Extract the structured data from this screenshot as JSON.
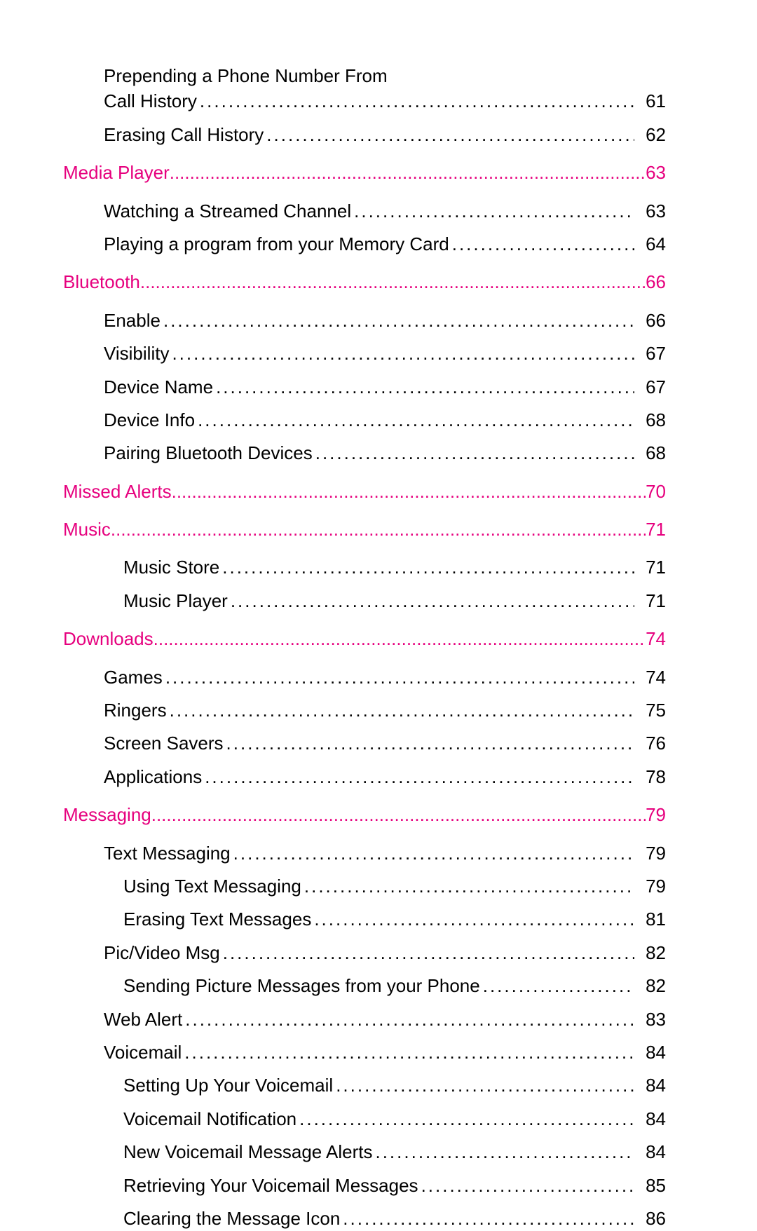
{
  "colors": {
    "section": "#e6007e",
    "text": "#000000",
    "background": "#ffffff"
  },
  "fontsize": 26,
  "entries": [
    {
      "type": "subitem",
      "level": 1,
      "title_line1": "Prepending a Phone Number From",
      "title_line2": "Call History",
      "page": "61"
    },
    {
      "type": "subitem",
      "level": 1,
      "title": "Erasing Call History",
      "page": "62"
    },
    {
      "type": "section",
      "level": 0,
      "title": "Media Player",
      "page": "63"
    },
    {
      "type": "subitem",
      "level": 1,
      "title": "Watching a Streamed Channel",
      "page": "63"
    },
    {
      "type": "subitem",
      "level": 1,
      "title": "Playing a program from your Memory Card",
      "page": "64"
    },
    {
      "type": "section",
      "level": 0,
      "title": "Bluetooth",
      "page": "66"
    },
    {
      "type": "subitem",
      "level": 1,
      "title": "Enable",
      "page": "66"
    },
    {
      "type": "subitem",
      "level": 1,
      "title": "Visibility",
      "page": "67"
    },
    {
      "type": "subitem",
      "level": 1,
      "title": "Device Name",
      "page": "67"
    },
    {
      "type": "subitem",
      "level": 1,
      "title": "Device Info",
      "page": "68"
    },
    {
      "type": "subitem",
      "level": 1,
      "title": "Pairing Bluetooth Devices",
      "page": "68"
    },
    {
      "type": "section",
      "level": 0,
      "title": "Missed Alerts",
      "page": "70"
    },
    {
      "type": "section",
      "level": 0,
      "title": "Music",
      "page": "71"
    },
    {
      "type": "subitem",
      "level": 2,
      "title": "Music Store",
      "page": "71"
    },
    {
      "type": "subitem",
      "level": 2,
      "title": "Music Player",
      "page": "71"
    },
    {
      "type": "section",
      "level": 0,
      "title": "Downloads",
      "page": "74"
    },
    {
      "type": "subitem",
      "level": 1,
      "title": "Games",
      "page": "74"
    },
    {
      "type": "subitem",
      "level": 1,
      "title": "Ringers",
      "page": "75"
    },
    {
      "type": "subitem",
      "level": 1,
      "title": "Screen Savers",
      "page": "76"
    },
    {
      "type": "subitem",
      "level": 1,
      "title": "Applications",
      "page": "78"
    },
    {
      "type": "section",
      "level": 0,
      "title": "Messaging",
      "page": "79"
    },
    {
      "type": "subitem",
      "level": 1,
      "title": "Text Messaging",
      "page": "79"
    },
    {
      "type": "subitem",
      "level": 2,
      "title": "Using Text Messaging",
      "page": "79"
    },
    {
      "type": "subitem",
      "level": 2,
      "title": "Erasing Text Messages",
      "page": "81"
    },
    {
      "type": "subitem",
      "level": 1,
      "title": "Pic/Video Msg",
      "page": "82"
    },
    {
      "type": "subitem",
      "level": 2,
      "title": "Sending Picture Messages from your Phone",
      "page": "82"
    },
    {
      "type": "subitem",
      "level": 1,
      "title": "Web Alert",
      "page": "83"
    },
    {
      "type": "subitem",
      "level": 1,
      "title": "Voicemail",
      "page": "84"
    },
    {
      "type": "subitem",
      "level": 2,
      "title": "Setting Up Your Voicemail",
      "page": "84"
    },
    {
      "type": "subitem",
      "level": 2,
      "title": "Voicemail Notification",
      "page": "84"
    },
    {
      "type": "subitem",
      "level": 2,
      "title": "New Voicemail Message Alerts",
      "page": "84"
    },
    {
      "type": "subitem",
      "level": 2,
      "title": "Retrieving Your Voicemail Messages",
      "page": "85"
    },
    {
      "type": "subitem",
      "level": 2,
      "title": "Clearing the Message Icon",
      "page": "86"
    }
  ]
}
